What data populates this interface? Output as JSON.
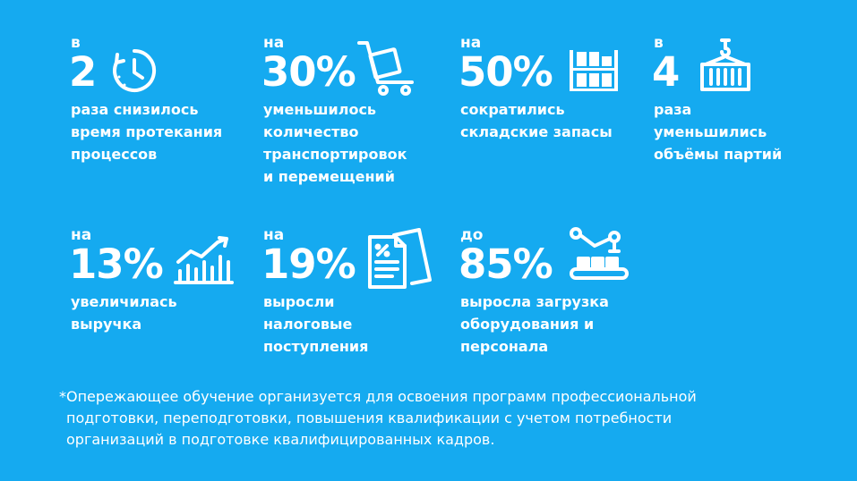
{
  "stats": [
    {
      "prefix": "в",
      "value": "2",
      "icon": "clock-icon",
      "desc": [
        "раза снизилось",
        "время протекания",
        "процессов"
      ]
    },
    {
      "prefix": "на",
      "value": "30%",
      "icon": "cart-icon",
      "desc": [
        "уменьшилось",
        "количество",
        "транспортировок",
        "и перемещений"
      ]
    },
    {
      "prefix": "на",
      "value": "50%",
      "icon": "warehouse-shelves-icon",
      "desc": [
        "сократились",
        "складские запасы"
      ]
    },
    {
      "prefix": "в",
      "value": "4",
      "icon": "crane-container-icon",
      "desc": [
        "раза",
        "уменьшились",
        "объёмы партий"
      ]
    },
    {
      "prefix": "на",
      "value": "13%",
      "icon": "growth-chart-icon",
      "desc": [
        "увеличилась",
        "выручка"
      ]
    },
    {
      "prefix": "на",
      "value": "19%",
      "icon": "tax-documents-icon",
      "desc": [
        "выросли",
        "налоговые",
        "поступления"
      ]
    },
    {
      "prefix": "до",
      "value": "85%",
      "icon": "robot-conveyor-icon",
      "desc": [
        "выросла загрузка",
        "оборудования и",
        "персонала"
      ]
    }
  ],
  "footnote": [
    "*Опережающее обучение организуется для освоения программ профессиональной",
    "подготовки, переподготовки, повышения квалификации с учетом потребности",
    "организаций в подготовке квалифицированных кадров."
  ],
  "colors": {
    "background": "#15aaf0",
    "text": "#ffffff"
  }
}
